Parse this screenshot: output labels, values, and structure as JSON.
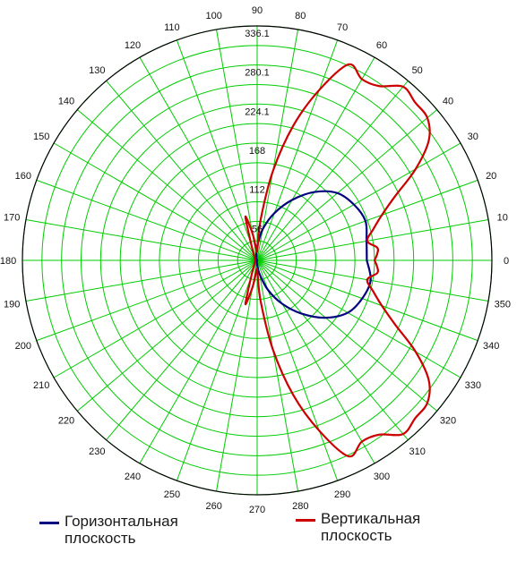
{
  "chart_data": {
    "type": "polar-line",
    "title": "",
    "angle_unit": "degrees",
    "angular_ticks": [
      0,
      10,
      20,
      30,
      40,
      50,
      60,
      70,
      80,
      90,
      100,
      110,
      120,
      130,
      140,
      150,
      160,
      170,
      180,
      190,
      200,
      210,
      220,
      230,
      240,
      250,
      260,
      270,
      280,
      290,
      300,
      310,
      320,
      330,
      340,
      350
    ],
    "angular_tick_labels": [
      "0",
      "10",
      "20",
      "30",
      "40",
      "50",
      "60",
      "70",
      "80",
      "90",
      "100",
      "110",
      "120",
      "130",
      "140",
      "150",
      "160",
      "170",
      "180",
      "190",
      "200",
      "210",
      "220",
      "230",
      "240",
      "250",
      "260",
      "270",
      "280",
      "290",
      "300",
      "310",
      "320",
      "330",
      "340",
      "350"
    ],
    "radial_ticks": [
      56,
      112,
      168,
      224.1,
      280.1,
      336.1
    ],
    "radial_tick_labels": [
      "56",
      "112",
      "168",
      "224.1",
      "280.1",
      "336.1"
    ],
    "rlim": [
      0,
      336.1
    ],
    "grid": true,
    "grid_color": "#00cc00",
    "series": [
      {
        "name": "Горизонтальная плоскость",
        "color": "#000080",
        "theta": [
          0,
          10,
          20,
          30,
          40,
          50,
          60,
          70,
          80,
          90,
          100,
          110,
          120,
          130,
          140,
          150,
          160,
          170,
          180,
          190,
          200,
          210,
          220,
          230,
          240,
          250,
          260,
          270,
          280,
          290,
          300,
          310,
          320,
          330,
          340,
          350,
          360
        ],
        "r": [
          157,
          159,
          165,
          160,
          150,
          128,
          100,
          72,
          45,
          20,
          6,
          2,
          1,
          0,
          0,
          0,
          0,
          0,
          0,
          0,
          0,
          0,
          0,
          0,
          0,
          1,
          2,
          6,
          20,
          45,
          72,
          100,
          128,
          150,
          160,
          165,
          157
        ]
      },
      {
        "name": "Вертикальная плоскость",
        "color": "#cc0000",
        "theta": [
          0,
          3,
          6,
          10,
          15,
          20,
          25,
          30,
          35,
          40,
          45,
          50,
          55,
          60,
          65,
          70,
          75,
          80,
          85,
          88,
          92,
          96,
          100,
          105,
          110,
          130,
          150,
          170,
          180,
          190,
          210,
          230,
          250,
          255,
          260,
          264,
          268,
          272,
          275,
          280,
          285,
          290,
          295,
          300,
          305,
          310,
          315,
          320,
          325,
          330,
          335,
          340,
          345,
          350,
          354,
          357,
          360
        ],
        "r": [
          168,
          172,
          173,
          160,
          172,
          190,
          218,
          262,
          300,
          318,
          320,
          325,
          305,
          300,
          310,
          260,
          200,
          130,
          60,
          20,
          12,
          20,
          40,
          65,
          25,
          6,
          4,
          3,
          3,
          3,
          4,
          6,
          25,
          65,
          40,
          20,
          12,
          20,
          60,
          130,
          200,
          260,
          310,
          300,
          305,
          325,
          320,
          318,
          300,
          262,
          218,
          190,
          172,
          160,
          173,
          172,
          168
        ]
      }
    ],
    "legend": [
      {
        "name": "Горизонтальная плоскость",
        "line1": "Горизонтальная",
        "line2": "плоскость",
        "color": "#000080"
      },
      {
        "name": "Вертикальная плоскость",
        "line1": "Вертикальная",
        "line2": "плоскость",
        "color": "#cc0000"
      }
    ],
    "legend_position": "bottom"
  }
}
